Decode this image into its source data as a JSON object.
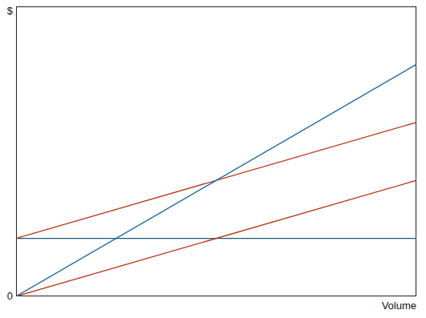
{
  "chart_data": {
    "type": "line",
    "y_label": "$",
    "x_label": "Volume",
    "x": [
      0,
      100
    ],
    "xlim": [
      0,
      100
    ],
    "ylim": [
      0,
      100
    ],
    "yticks": [
      0
    ],
    "tick_labels": "y",
    "series": [
      {
        "color": "#0f62a0",
        "values": [
          0,
          80
        ]
      },
      {
        "color": "#b8300f",
        "values": [
          20,
          60
        ]
      },
      {
        "color": "#b8300f",
        "values": [
          0,
          40
        ]
      },
      {
        "color": "#1d5b79",
        "values": [
          20,
          20
        ]
      }
    ]
  }
}
